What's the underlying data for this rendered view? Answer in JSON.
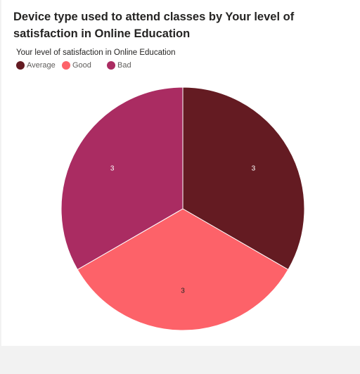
{
  "chart_data": {
    "type": "pie",
    "title": "Device type used to attend classes by Your level of satisfaction in Online Education",
    "legend_title": "Your level of satisfaction in Online Education",
    "legend_position": "top-left",
    "categories": [
      "Average",
      "Good",
      "Bad"
    ],
    "values": [
      3,
      3,
      3
    ],
    "colors": [
      "#641b22",
      "#fd6269",
      "#aa2c62"
    ],
    "data_labels": [
      "3",
      "3",
      "3"
    ],
    "label_colors": [
      "#ffffff",
      "#252423",
      "#ffffff"
    ]
  }
}
